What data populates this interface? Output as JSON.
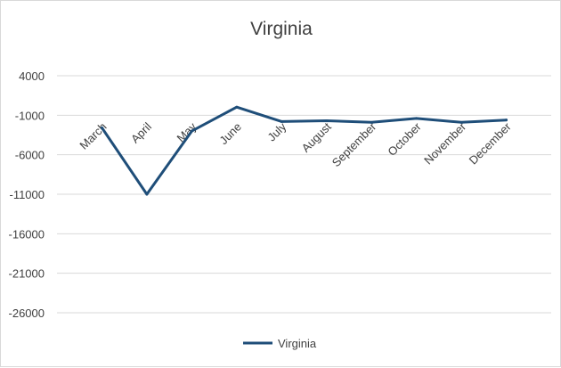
{
  "chart_data": {
    "type": "line",
    "title": "Virginia",
    "xlabel": "",
    "ylabel": "",
    "categories": [
      "March",
      "April",
      "May",
      "June",
      "July",
      "August",
      "September",
      "October",
      "November",
      "December"
    ],
    "series": [
      {
        "name": "Virginia",
        "color": "#1f4e79",
        "values": [
          -2600,
          -11000,
          -3000,
          29,
          -1800,
          -1700,
          -1900,
          -1400,
          -1900,
          -1600
        ]
      }
    ],
    "ylim": [
      -26000,
      4000
    ],
    "yticks": [
      4000,
      -1000,
      -6000,
      -11000,
      -16000,
      -21000,
      -26000
    ],
    "grid": true,
    "legend": "bottom"
  }
}
